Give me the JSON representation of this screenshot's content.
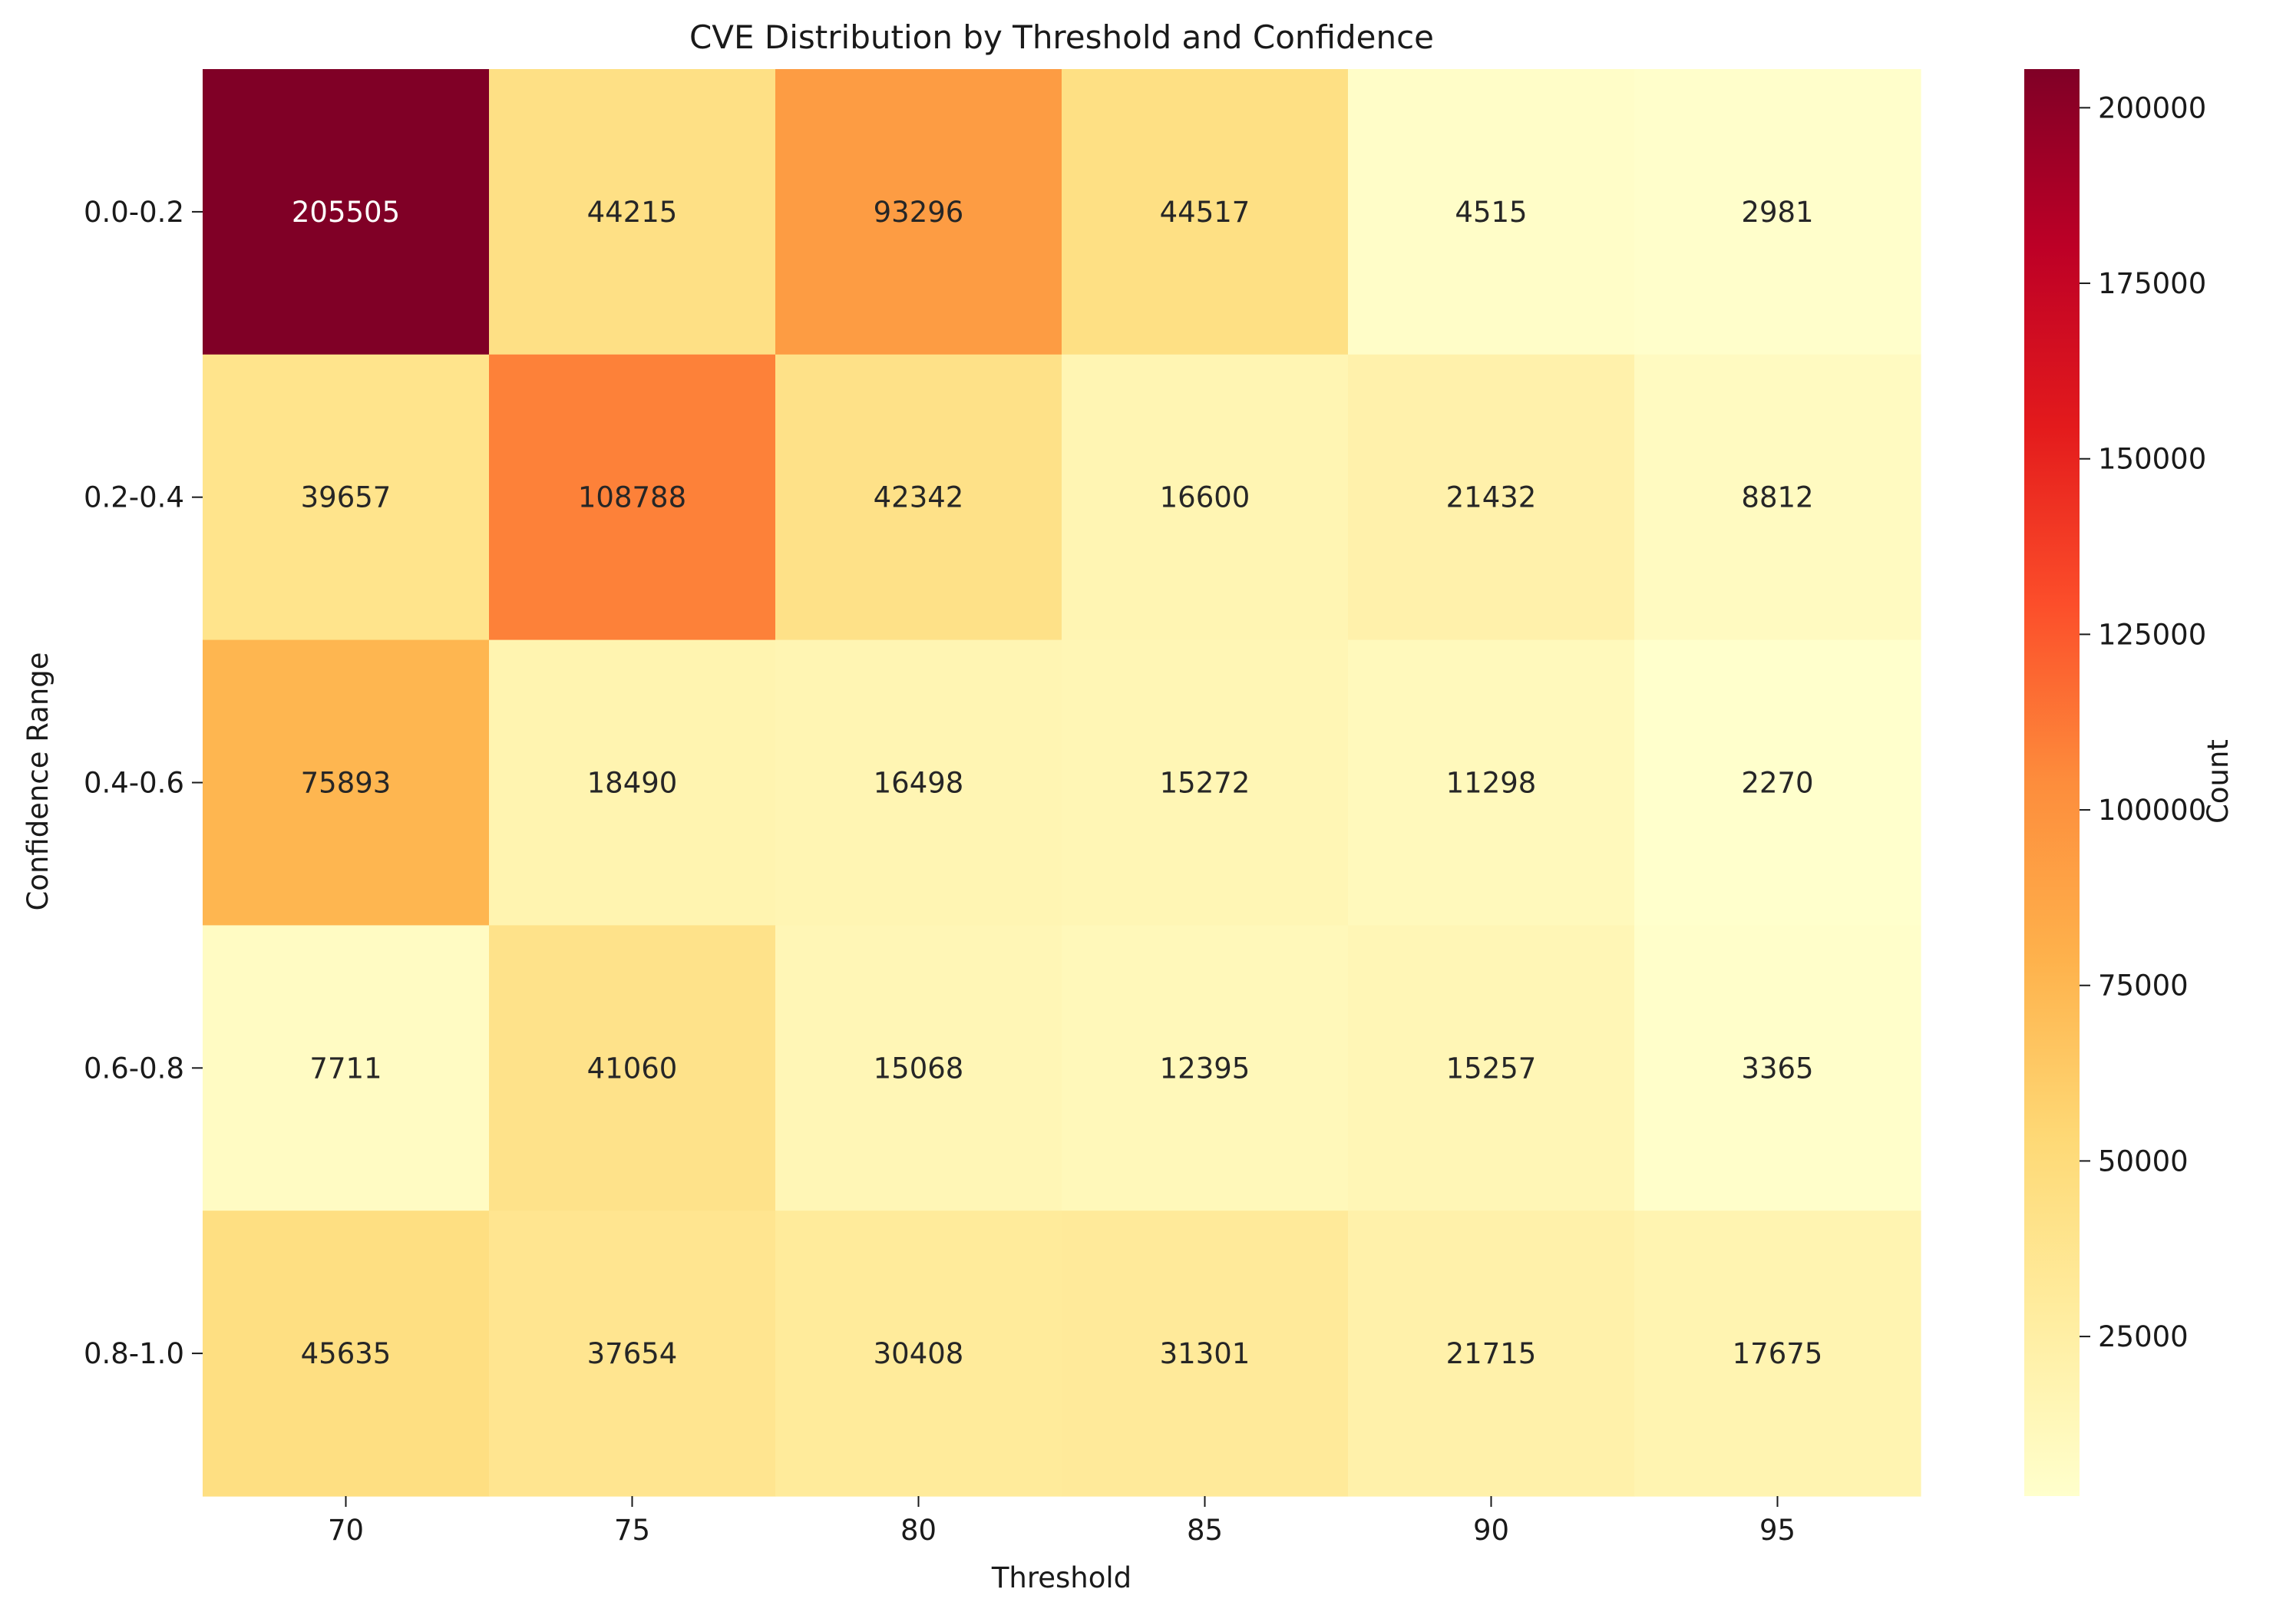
{
  "chart_data": {
    "type": "heatmap",
    "title": "CVE Distribution by Threshold and Confidence",
    "xlabel": "Threshold",
    "ylabel": "Confidence Range",
    "x_categories": [
      "70",
      "75",
      "80",
      "85",
      "90",
      "95"
    ],
    "y_categories": [
      "0.0-0.2",
      "0.2-0.4",
      "0.4-0.6",
      "0.6-0.8",
      "0.8-1.0"
    ],
    "values": [
      [
        205505,
        44215,
        93296,
        44517,
        4515,
        2981
      ],
      [
        39657,
        108788,
        42342,
        16600,
        21432,
        8812
      ],
      [
        75893,
        18490,
        16498,
        15272,
        11298,
        2270
      ],
      [
        7711,
        41060,
        15068,
        12395,
        15257,
        3365
      ],
      [
        45635,
        37654,
        30408,
        31301,
        21715,
        17675
      ]
    ],
    "colorbar": {
      "label": "Count",
      "colormap": "YlOrRd",
      "vmin": 2270,
      "vmax": 205505,
      "ticks": [
        25000,
        50000,
        75000,
        100000,
        125000,
        150000,
        175000,
        200000
      ]
    },
    "colors": {
      "text_dark": "#262626",
      "text_light": "#ffffff",
      "ramp": [
        "#ffffcc",
        "#ffeda0",
        "#fed976",
        "#feb24c",
        "#fd8d3c",
        "#fc4e2a",
        "#e31a1c",
        "#bd0026",
        "#800026"
      ]
    }
  }
}
